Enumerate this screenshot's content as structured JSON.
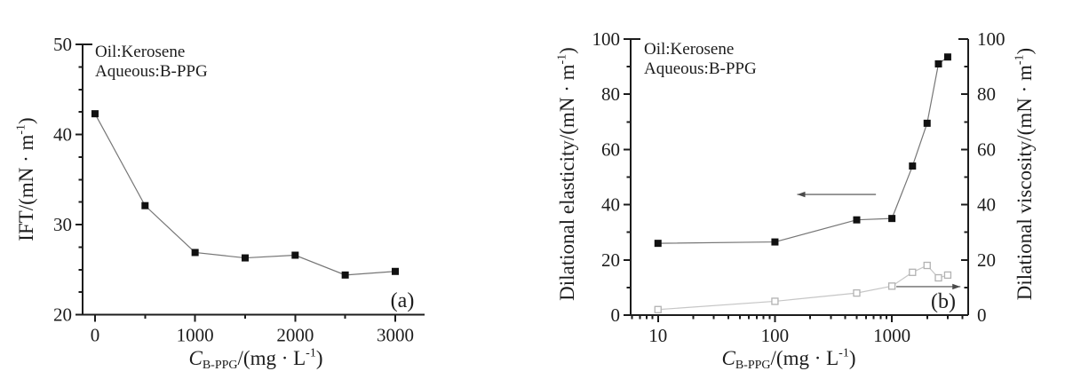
{
  "figure": {
    "description": "Two-panel scientific line plot figure",
    "background": "#ffffff"
  },
  "colors": {
    "text": "#1c1c1c",
    "axis": "#1c1c1c",
    "dark_series_line": "#767676",
    "dark_series_marker": "#111111",
    "light_series_line": "#c6c6c6",
    "light_series_marker": "#b2b2b2",
    "arrow": "#4a4a4a"
  },
  "chart_data": [
    {
      "panel_label": "(a)",
      "type": "line",
      "annotation_lines": [
        "Oil:Kerosene",
        "Aqueous:B-PPG"
      ],
      "xlabel_plain": "C_B-PPG/(mg · L^-1)",
      "ylabel_plain": "IFT/(mN · m^-1)",
      "xlabel": [
        {
          "t": "C",
          "s": "i"
        },
        {
          "t": "B-PPG",
          "s": "sub"
        },
        {
          "t": "/(mg · L",
          "s": "n"
        },
        {
          "t": "-1",
          "s": "sup"
        },
        {
          "t": ")",
          "s": "n"
        }
      ],
      "ylabel": [
        {
          "t": "IFT/(mN · m",
          "s": "n"
        },
        {
          "t": "-1",
          "s": "sup"
        },
        {
          "t": ")",
          "s": "n"
        }
      ],
      "x_axis": {
        "scale": "linear",
        "major_ticks": [
          0,
          1000,
          2000,
          3000
        ],
        "major_labels": [
          "0",
          "1000",
          "2000",
          "3000"
        ],
        "minor_ticks": [
          500,
          1500,
          2500
        ]
      },
      "y_axis": {
        "scale": "linear",
        "major_ticks": [
          20,
          30,
          40,
          50
        ],
        "major_labels": [
          "20",
          "30",
          "40",
          "50"
        ],
        "minor_ticks": [
          22.5,
          25,
          27.5,
          32.5,
          35,
          37.5,
          42.5,
          45,
          47.5
        ],
        "ylim": [
          20,
          50
        ]
      },
      "series": [
        {
          "name": "IFT",
          "marker": "filled-square",
          "x": [
            0,
            500,
            1000,
            1500,
            2000,
            2500,
            3000
          ],
          "y": [
            42.3,
            32.1,
            26.9,
            26.3,
            26.6,
            24.4,
            24.8
          ]
        }
      ],
      "arrows": []
    },
    {
      "panel_label": "(b)",
      "type": "line",
      "annotation_lines": [
        "Oil:Kerosene",
        "Aqueous:B-PPG"
      ],
      "xlabel_plain": "C_B-PPG/(mg · L^-1)",
      "ylabel_left_plain": "Dilational elasticity/(mN · m^-1)",
      "ylabel_right_plain": "Dilational viscosity/(mN · m^-1)",
      "xlabel": [
        {
          "t": "C",
          "s": "i"
        },
        {
          "t": "B-PPG",
          "s": "sub"
        },
        {
          "t": "/(mg · L",
          "s": "n"
        },
        {
          "t": "-1",
          "s": "sup"
        },
        {
          "t": ")",
          "s": "n"
        }
      ],
      "ylabel_left": [
        {
          "t": "Dilational elasticity/(mN · m",
          "s": "n"
        },
        {
          "t": "-1",
          "s": "sup"
        },
        {
          "t": ")",
          "s": "n"
        }
      ],
      "ylabel_right": [
        {
          "t": "Dilational viscosity/(mN · m",
          "s": "n"
        },
        {
          "t": "-1",
          "s": "sup"
        },
        {
          "t": ")",
          "s": "n"
        }
      ],
      "x_axis": {
        "scale": "log",
        "major_ticks": [
          10,
          100,
          1000
        ],
        "major_labels": [
          "10",
          "100",
          "1000"
        ],
        "minor_ticks": [
          6,
          7,
          8,
          9,
          20,
          30,
          40,
          50,
          60,
          70,
          80,
          90,
          200,
          300,
          400,
          500,
          600,
          700,
          800,
          900,
          2000,
          3000,
          4000
        ]
      },
      "y_axis": {
        "scale": "linear",
        "major_ticks": [
          0,
          20,
          40,
          60,
          80,
          100
        ],
        "major_labels": [
          "0",
          "20",
          "40",
          "60",
          "80",
          "100"
        ],
        "minor_ticks": [
          10,
          30,
          50,
          70,
          90
        ],
        "ylim": [
          0,
          100
        ]
      },
      "series": [
        {
          "name": "Dilational elasticity",
          "axis": "left",
          "marker": "filled-square",
          "x": [
            10,
            100,
            500,
            1000,
            1500,
            2000,
            2500,
            3000
          ],
          "y": [
            26,
            26.5,
            34.5,
            35,
            54,
            69.5,
            91,
            93.5
          ]
        },
        {
          "name": "Dilational viscosity",
          "axis": "right",
          "marker": "open-square",
          "x": [
            10,
            100,
            500,
            1000,
            1500,
            2000,
            2500,
            3000
          ],
          "y": [
            2,
            5,
            8,
            10.5,
            15.5,
            18,
            13.5,
            14.5
          ]
        }
      ],
      "arrows": [
        {
          "for": "Dilational elasticity",
          "direction": "left",
          "y": 43.7,
          "x_from": 155,
          "x_to": 730
        },
        {
          "for": "Dilational viscosity",
          "direction": "right",
          "y": 10.3,
          "x_from": 1090,
          "x_to": 3850
        }
      ]
    }
  ]
}
